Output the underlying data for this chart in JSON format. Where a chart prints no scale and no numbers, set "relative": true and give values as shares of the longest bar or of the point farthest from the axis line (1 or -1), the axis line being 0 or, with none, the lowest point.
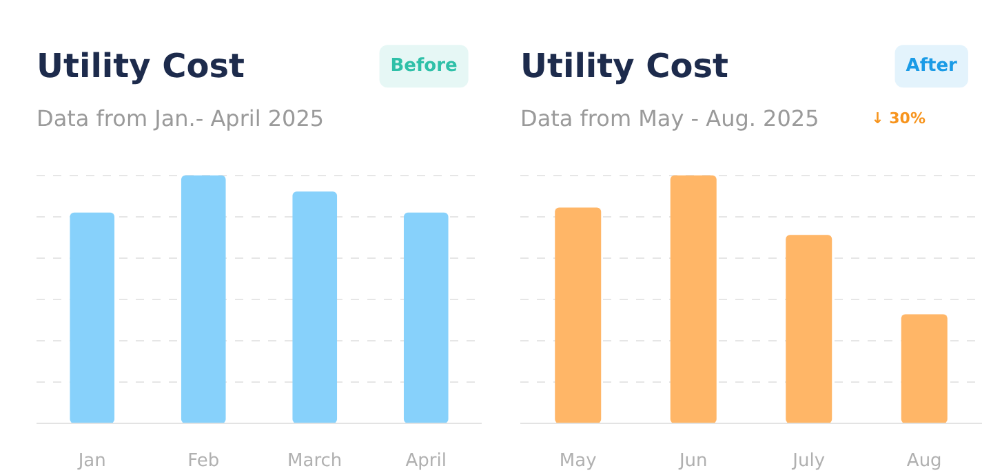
{
  "chart_data": [
    {
      "type": "bar",
      "title": "Utility Cost",
      "subtitle": "Data from Jan.- April 2025",
      "categories": [
        "Jan",
        "Feb",
        "March",
        "April"
      ],
      "values": [
        0.85,
        1,
        0.935,
        0.85
      ],
      "color": "#87d1fb",
      "relative": true,
      "grid": "y",
      "annotations": [
        "Before"
      ]
    },
    {
      "type": "bar",
      "title": "Utility Cost",
      "subtitle": "Data from May - Aug. 2025",
      "categories": [
        "May",
        "Jun",
        "July",
        "Aug"
      ],
      "values": [
        0.87,
        1,
        0.76,
        0.44
      ],
      "color": "#ffb667",
      "relative": true,
      "grid": "y",
      "annotations": [
        "After",
        "↓ 30%"
      ]
    }
  ]
}
